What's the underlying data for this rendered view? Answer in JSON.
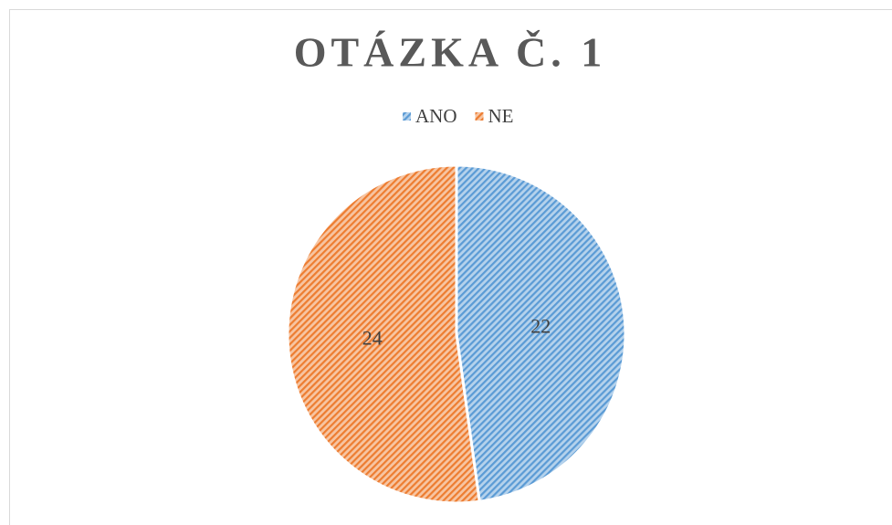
{
  "chart_data": {
    "type": "pie",
    "title": "OTÁZKA Č. 1",
    "categories": [
      "ANO",
      "NE"
    ],
    "values": [
      22,
      24
    ],
    "colors": [
      "#5b9bd5",
      "#ed7d31"
    ],
    "legend": "top"
  }
}
